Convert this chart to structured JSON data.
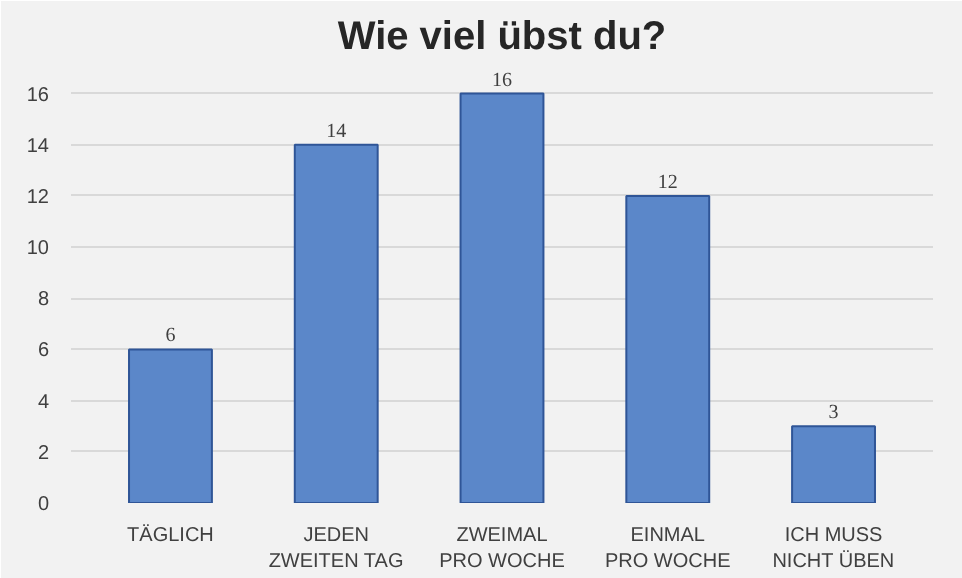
{
  "chart_data": {
    "type": "bar",
    "title": "Wie viel übst du?",
    "categories": [
      "TÄGLICH",
      "JEDEN ZWEITEN TAG",
      "ZWEIMAL PRO WOCHE",
      "EINMAL PRO WOCHE",
      "ICH MUSS NICHT ÜBEN"
    ],
    "values": [
      6,
      14,
      16,
      12,
      3
    ],
    "color": "#5b87c9",
    "ylim": [
      0,
      16
    ],
    "yticks": [
      0,
      2,
      4,
      6,
      8,
      10,
      12,
      14,
      16
    ],
    "grid": "y",
    "data_labels": true
  }
}
